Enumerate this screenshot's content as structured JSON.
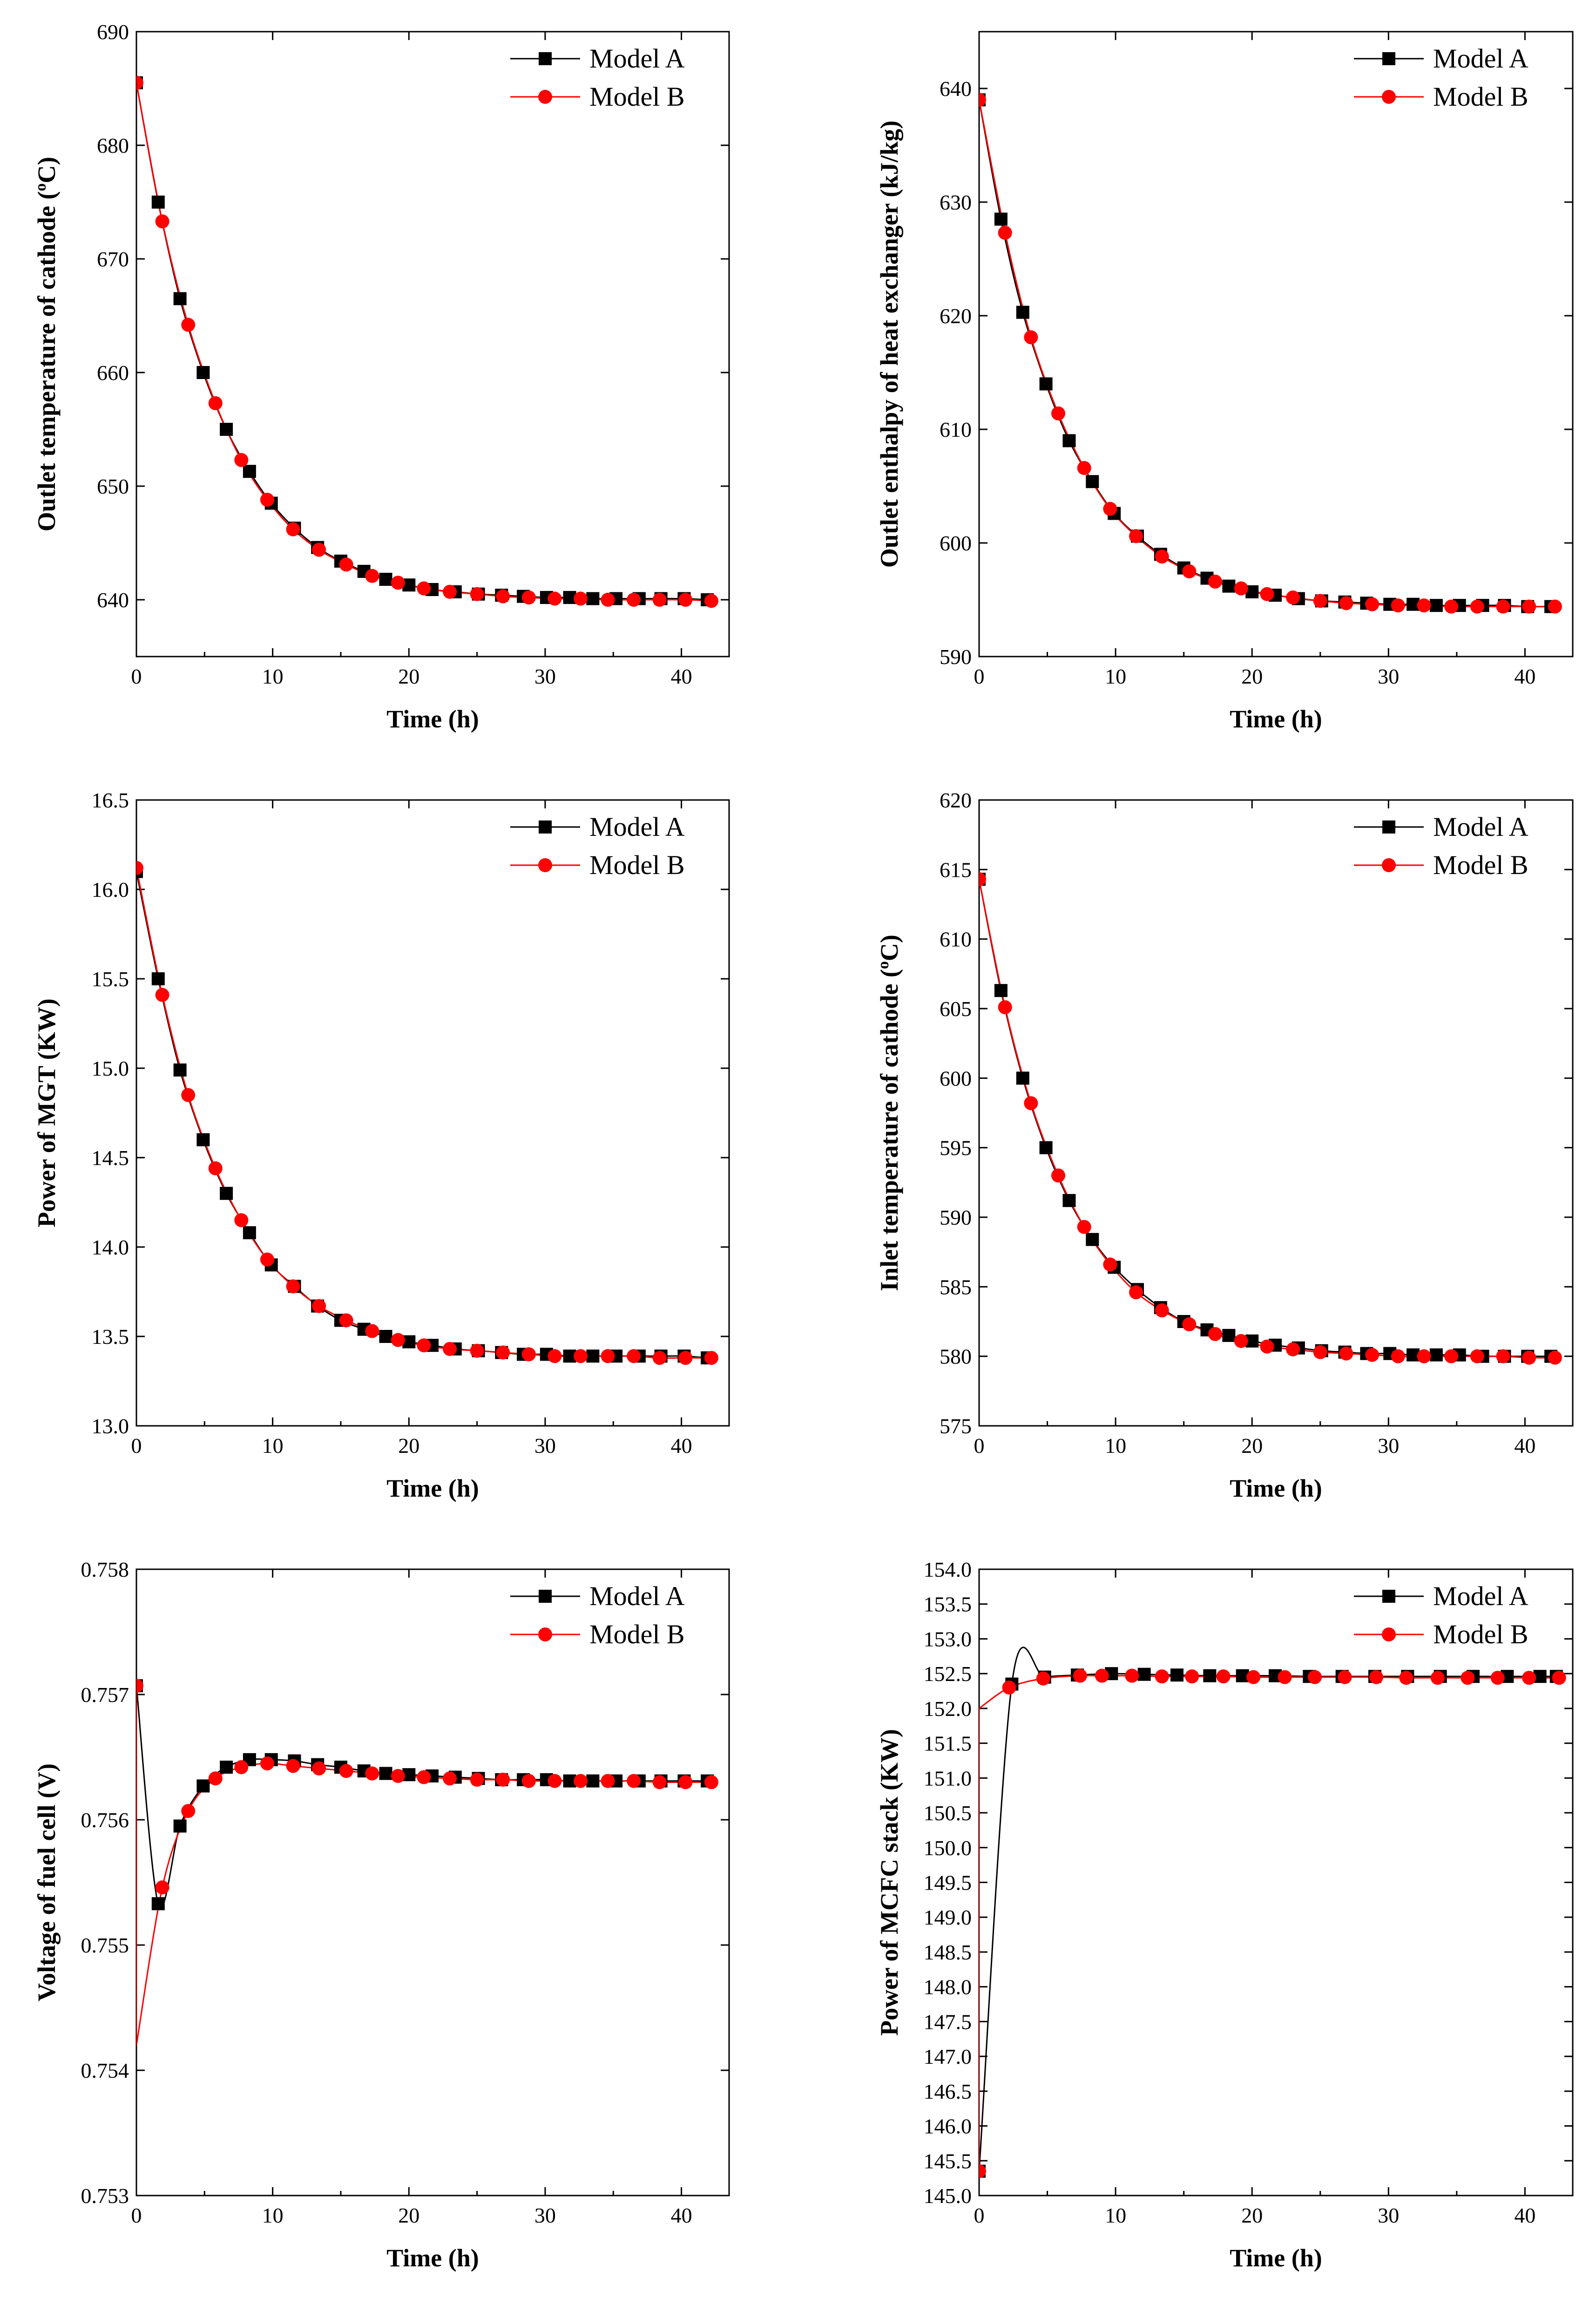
{
  "chart_data": [
    {
      "type": "line",
      "xlabel": "Time (h)",
      "ylabel_main": "Outlet temperature of cathode (",
      "ylabel_sup": "o",
      "ylabel_end": "C)",
      "xlim": [
        0,
        43.5
      ],
      "ylim": [
        635,
        690
      ],
      "xticks": [
        0,
        10,
        20,
        30,
        40
      ],
      "xtick_labels": [
        "0",
        "10",
        "20",
        "30",
        "40"
      ],
      "yticks": [
        640,
        650,
        660,
        670,
        680,
        690
      ],
      "ytick_labels": [
        "640",
        "650",
        "660",
        "670",
        "680",
        "690"
      ],
      "legend": [
        "Model A",
        "Model B"
      ],
      "series": [
        {
          "name": "Model A",
          "color": "#000000",
          "marker": "square",
          "x": [
            0,
            1.6,
            3.2,
            4.9,
            6.6,
            8.3,
            9.9,
            11.6,
            13.3,
            15.0,
            16.7,
            18.3,
            20.0,
            21.7,
            23.4,
            25.1,
            26.8,
            28.4,
            30.1,
            31.8,
            33.5,
            35.2,
            36.9,
            38.5,
            40.2,
            41.9
          ],
          "values": [
            685.5,
            675,
            666.5,
            660,
            655,
            651.3,
            648.5,
            646.3,
            644.6,
            643.4,
            642.5,
            641.8,
            641.3,
            640.9,
            640.7,
            640.5,
            640.4,
            640.3,
            640.2,
            640.2,
            640.1,
            640.1,
            640.1,
            640.1,
            640.1,
            640
          ]
        },
        {
          "name": "Model B",
          "color": "#ff0000",
          "marker": "circle",
          "x": [
            0,
            1.9,
            3.8,
            5.8,
            7.7,
            9.6,
            11.5,
            13.4,
            15.4,
            17.3,
            19.2,
            21.1,
            23.0,
            25.0,
            26.9,
            28.8,
            30.7,
            32.6,
            34.6,
            36.5,
            38.4,
            40.3,
            42.2
          ],
          "values": [
            685.5,
            673.3,
            664.2,
            657.3,
            652.3,
            648.8,
            646.2,
            644.4,
            643.1,
            642.1,
            641.5,
            641.0,
            640.7,
            640.5,
            640.3,
            640.2,
            640.1,
            640.1,
            640.0,
            640.0,
            640.0,
            640.0,
            639.9
          ]
        }
      ]
    },
    {
      "type": "line",
      "xlabel": "Time (h)",
      "ylabel_main": "Outlet enthalpy of heat exchanger (kJ/kg)",
      "xlim": [
        0,
        43.5
      ],
      "ylim": [
        590,
        645
      ],
      "xticks": [
        0,
        10,
        20,
        30,
        40
      ],
      "xtick_labels": [
        "0",
        "10",
        "20",
        "30",
        "40"
      ],
      "yticks": [
        590,
        600,
        610,
        620,
        630,
        640
      ],
      "ytick_labels": [
        "590",
        "600",
        "610",
        "620",
        "630",
        "640"
      ],
      "legend": [
        "Model A",
        "Model B"
      ],
      "series": [
        {
          "name": "Model A",
          "color": "#000000",
          "marker": "square",
          "x": [
            0,
            1.6,
            3.2,
            4.9,
            6.6,
            8.3,
            9.9,
            11.6,
            13.3,
            15.0,
            16.7,
            18.3,
            20.0,
            21.7,
            23.4,
            25.1,
            26.8,
            28.4,
            30.1,
            31.8,
            33.5,
            35.2,
            36.9,
            38.5,
            40.2,
            41.9
          ],
          "values": [
            639,
            628.5,
            620.3,
            614,
            609,
            605.4,
            602.6,
            600.6,
            599.0,
            597.8,
            596.9,
            596.2,
            595.7,
            595.4,
            595.1,
            594.9,
            594.8,
            594.7,
            594.6,
            594.6,
            594.5,
            594.5,
            594.5,
            594.5,
            594.4,
            594.4
          ]
        },
        {
          "name": "Model B",
          "color": "#ff0000",
          "marker": "circle",
          "x": [
            0,
            1.9,
            3.8,
            5.8,
            7.7,
            9.6,
            11.5,
            13.4,
            15.4,
            17.3,
            19.2,
            21.1,
            23.0,
            25.0,
            26.9,
            28.8,
            30.7,
            32.6,
            34.6,
            36.5,
            38.4,
            40.3,
            42.2
          ],
          "values": [
            639,
            627.3,
            618.1,
            611.4,
            606.6,
            603.0,
            600.6,
            598.8,
            597.5,
            596.6,
            596.0,
            595.5,
            595.2,
            594.9,
            594.7,
            594.6,
            594.5,
            594.5,
            594.4,
            594.4,
            594.4,
            594.4,
            594.4
          ]
        }
      ]
    },
    {
      "type": "line",
      "xlabel": "Time (h)",
      "ylabel_main": "Power of MGT (KW)",
      "xlim": [
        0,
        43.5
      ],
      "ylim": [
        13.0,
        16.5
      ],
      "xticks": [
        0,
        10,
        20,
        30,
        40
      ],
      "xtick_labels": [
        "0",
        "10",
        "20",
        "30",
        "40"
      ],
      "yticks": [
        13.0,
        13.5,
        14.0,
        14.5,
        15.0,
        15.5,
        16.0,
        16.5
      ],
      "ytick_labels": [
        "13.0",
        "13.5",
        "14.0",
        "14.5",
        "15.0",
        "15.5",
        "16.0",
        "16.5"
      ],
      "legend": [
        "Model A",
        "Model B"
      ],
      "series": [
        {
          "name": "Model A",
          "color": "#000000",
          "marker": "square",
          "x": [
            0,
            1.6,
            3.2,
            4.9,
            6.6,
            8.3,
            9.9,
            11.6,
            13.3,
            15.0,
            16.7,
            18.3,
            20.0,
            21.7,
            23.4,
            25.1,
            26.8,
            28.4,
            30.1,
            31.8,
            33.5,
            35.2,
            36.9,
            38.5,
            40.2,
            41.9
          ],
          "values": [
            16.1,
            15.5,
            14.99,
            14.6,
            14.3,
            14.08,
            13.9,
            13.78,
            13.67,
            13.59,
            13.54,
            13.5,
            13.47,
            13.45,
            13.43,
            13.42,
            13.41,
            13.4,
            13.4,
            13.39,
            13.39,
            13.39,
            13.39,
            13.39,
            13.39,
            13.38
          ]
        },
        {
          "name": "Model B",
          "color": "#ff0000",
          "marker": "circle",
          "x": [
            0,
            1.9,
            3.8,
            5.8,
            7.7,
            9.6,
            11.5,
            13.4,
            15.4,
            17.3,
            19.2,
            21.1,
            23.0,
            25.0,
            26.9,
            28.8,
            30.7,
            32.6,
            34.6,
            36.5,
            38.4,
            40.3,
            42.2
          ],
          "values": [
            16.12,
            15.41,
            14.85,
            14.44,
            14.15,
            13.93,
            13.78,
            13.67,
            13.59,
            13.53,
            13.48,
            13.45,
            13.43,
            13.42,
            13.41,
            13.4,
            13.39,
            13.39,
            13.39,
            13.39,
            13.38,
            13.38,
            13.38
          ]
        }
      ]
    },
    {
      "type": "line",
      "xlabel": "Time (h)",
      "ylabel_main": "Inlet temperature of cathode (",
      "ylabel_sup": "o",
      "ylabel_end": "C)",
      "xlim": [
        0,
        43.5
      ],
      "ylim": [
        575,
        620
      ],
      "xticks": [
        0,
        10,
        20,
        30,
        40
      ],
      "xtick_labels": [
        "0",
        "10",
        "20",
        "30",
        "40"
      ],
      "yticks": [
        575,
        580,
        585,
        590,
        595,
        600,
        605,
        610,
        615,
        620
      ],
      "ytick_labels": [
        "575",
        "580",
        "585",
        "590",
        "595",
        "600",
        "605",
        "610",
        "615",
        "620"
      ],
      "legend": [
        "Model A",
        "Model B"
      ],
      "series": [
        {
          "name": "Model A",
          "color": "#000000",
          "marker": "square",
          "x": [
            0,
            1.6,
            3.2,
            4.9,
            6.6,
            8.3,
            9.9,
            11.6,
            13.3,
            15.0,
            16.7,
            18.3,
            20.0,
            21.7,
            23.4,
            25.1,
            26.8,
            28.4,
            30.1,
            31.8,
            33.5,
            35.2,
            36.9,
            38.5,
            40.2,
            41.9
          ],
          "values": [
            614.3,
            606.3,
            600,
            595,
            591.2,
            588.4,
            586.4,
            584.8,
            583.5,
            582.5,
            581.9,
            581.5,
            581.1,
            580.8,
            580.6,
            580.4,
            580.3,
            580.2,
            580.2,
            580.1,
            580.1,
            580.1,
            580.0,
            580.0,
            580.0,
            580.0
          ]
        },
        {
          "name": "Model B",
          "color": "#ff0000",
          "marker": "circle",
          "x": [
            0,
            1.9,
            3.8,
            5.8,
            7.7,
            9.6,
            11.5,
            13.4,
            15.4,
            17.3,
            19.2,
            21.1,
            23.0,
            25.0,
            26.9,
            28.8,
            30.7,
            32.6,
            34.6,
            36.5,
            38.4,
            40.3,
            42.2
          ],
          "values": [
            614.3,
            605.1,
            598.2,
            593.0,
            589.3,
            586.6,
            584.6,
            583.3,
            582.3,
            581.6,
            581.1,
            580.7,
            580.5,
            580.3,
            580.2,
            580.1,
            580.0,
            580.0,
            580.0,
            580.0,
            580.0,
            579.9,
            579.9
          ]
        }
      ]
    },
    {
      "type": "line",
      "xlabel": "Time (h)",
      "ylabel_main": "Voltage of fuel cell (V)",
      "xlim": [
        0,
        43.5
      ],
      "ylim": [
        0.753,
        0.758
      ],
      "xticks": [
        0,
        10,
        20,
        30,
        40
      ],
      "xtick_labels": [
        "0",
        "10",
        "20",
        "30",
        "40"
      ],
      "yticks": [
        0.753,
        0.754,
        0.755,
        0.756,
        0.757,
        0.758
      ],
      "ytick_labels": [
        "0.753",
        "0.754",
        "0.755",
        "0.756",
        "0.757",
        "0.758"
      ],
      "legend": [
        "Model A",
        "Model B"
      ],
      "series": [
        {
          "name": "Model A",
          "color": "#000000",
          "marker": "square",
          "x": [
            0,
            1.6,
            3.2,
            4.9,
            6.6,
            8.3,
            9.9,
            11.6,
            13.3,
            15.0,
            16.7,
            18.3,
            20.0,
            21.7,
            23.4,
            25.1,
            26.8,
            28.4,
            30.1,
            31.8,
            33.5,
            35.2,
            36.9,
            38.5,
            40.2,
            41.9
          ],
          "values": [
            0.75707,
            0.75533,
            0.75595,
            0.75627,
            0.75642,
            0.75648,
            0.75648,
            0.75647,
            0.75644,
            0.75642,
            0.75639,
            0.75637,
            0.75636,
            0.75635,
            0.75634,
            0.75633,
            0.75632,
            0.75632,
            0.75632,
            0.75631,
            0.75631,
            0.75631,
            0.75631,
            0.75631,
            0.75631,
            0.75631
          ]
        },
        {
          "name": "Model B",
          "color": "#ff0000",
          "marker": "circle",
          "x": [
            0,
            1.9,
            3.8,
            5.8,
            7.7,
            9.6,
            11.5,
            13.4,
            15.4,
            17.3,
            19.2,
            21.1,
            23.0,
            25.0,
            26.9,
            28.8,
            30.7,
            32.6,
            34.6,
            36.5,
            38.4,
            40.3,
            42.2
          ],
          "values": [
            0.75707,
            0.75546,
            0.75607,
            0.75633,
            0.75642,
            0.75645,
            0.75643,
            0.75641,
            0.75639,
            0.75637,
            0.75635,
            0.75634,
            0.75633,
            0.75632,
            0.75632,
            0.75631,
            0.75631,
            0.75631,
            0.75631,
            0.75631,
            0.7563,
            0.7563,
            0.7563
          ]
        }
      ],
      "curve_start": 0.7542
    },
    {
      "type": "line",
      "xlabel": "Time (h)",
      "ylabel_main": "Power of MCFC stack (KW)",
      "xlim": [
        0,
        43.5
      ],
      "ylim": [
        145.0,
        154.0
      ],
      "xticks": [
        0,
        10,
        20,
        30,
        40
      ],
      "xtick_labels": [
        "0",
        "10",
        "20",
        "30",
        "40"
      ],
      "yticks": [
        145.0,
        145.5,
        146.0,
        146.5,
        147.0,
        147.5,
        148.0,
        148.5,
        149.0,
        149.5,
        150.0,
        150.5,
        151.0,
        151.5,
        152.0,
        152.5,
        153.0,
        153.5,
        154.0
      ],
      "ytick_labels": [
        "145.0",
        "145.5",
        "146.0",
        "146.5",
        "147.0",
        "147.5",
        "148.0",
        "148.5",
        "149.0",
        "149.5",
        "150.0",
        "150.5",
        "151.0",
        "151.5",
        "152.0",
        "152.5",
        "153.0",
        "153.5",
        "154.0"
      ],
      "legend": [
        "Model A",
        "Model B"
      ],
      "series": [
        {
          "name": "Model A",
          "color": "#000000",
          "marker": "square",
          "x": [
            0,
            2.4,
            4.8,
            7.2,
            9.7,
            12.1,
            14.5,
            16.9,
            19.3,
            21.7,
            24.2,
            26.6,
            29.0,
            31.4,
            33.8,
            36.2,
            38.7,
            41.1,
            42.3
          ],
          "values": [
            145.35,
            152.35,
            152.45,
            152.48,
            152.5,
            152.49,
            152.48,
            152.47,
            152.47,
            152.47,
            152.46,
            152.46,
            152.46,
            152.46,
            152.46,
            152.46,
            152.46,
            152.46,
            152.46
          ]
        },
        {
          "name": "Model B",
          "color": "#ff0000",
          "marker": "circle",
          "x": [
            0,
            2.2,
            4.7,
            7.4,
            9.0,
            11.2,
            13.4,
            15.6,
            17.9,
            20.1,
            22.4,
            24.6,
            26.8,
            29.1,
            31.3,
            33.6,
            35.8,
            38.0,
            40.3,
            42.5
          ],
          "values": [
            145.35,
            152.3,
            152.43,
            152.47,
            152.47,
            152.47,
            152.46,
            152.46,
            152.46,
            152.45,
            152.45,
            152.45,
            152.45,
            152.45,
            152.44,
            152.44,
            152.44,
            152.44,
            152.44,
            152.44
          ]
        }
      ],
      "curve_start": 152.0
    }
  ]
}
